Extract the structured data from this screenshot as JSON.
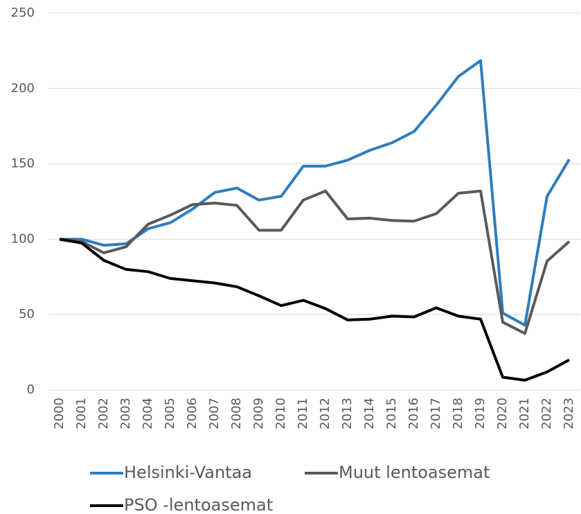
{
  "chart_data": {
    "type": "line",
    "categories": [
      "2000",
      "2001",
      "2002",
      "2003",
      "2004",
      "2005",
      "2006",
      "2007",
      "2008",
      "2009",
      "2010",
      "2011",
      "2012",
      "2013",
      "2014",
      "2015",
      "2016",
      "2017",
      "2018",
      "2019",
      "2020",
      "2021",
      "2022",
      "2023"
    ],
    "series": [
      {
        "name": "Helsinki-Vantaa",
        "color": "#2e7dbd",
        "values": [
          100,
          100,
          96,
          97,
          107,
          111,
          120,
          131,
          134,
          126,
          128.5,
          148.5,
          148.5,
          152.5,
          159,
          164,
          171.5,
          189,
          208,
          218.5,
          51,
          43,
          128.5,
          153
        ]
      },
      {
        "name": "Muut lentoasemat",
        "color": "#595959",
        "values": [
          100,
          98.5,
          91,
          95,
          110,
          116,
          123,
          124,
          122.5,
          106,
          106,
          126,
          132,
          113.5,
          114,
          112.5,
          112,
          117,
          130.5,
          132,
          45,
          37.5,
          85.5,
          98.5
        ]
      },
      {
        "name": "PSO -lentoasemat",
        "color": "#000000",
        "values": [
          100,
          97.5,
          86,
          80,
          78.5,
          74,
          72.5,
          71,
          68.5,
          62.5,
          56,
          59.5,
          54,
          46.5,
          47,
          49,
          48.5,
          54.5,
          49,
          47,
          8.5,
          6.5,
          12,
          20
        ]
      }
    ],
    "ylim": [
      0,
      250
    ],
    "yticks": [
      0,
      50,
      100,
      150,
      200,
      250
    ],
    "grid": true
  }
}
